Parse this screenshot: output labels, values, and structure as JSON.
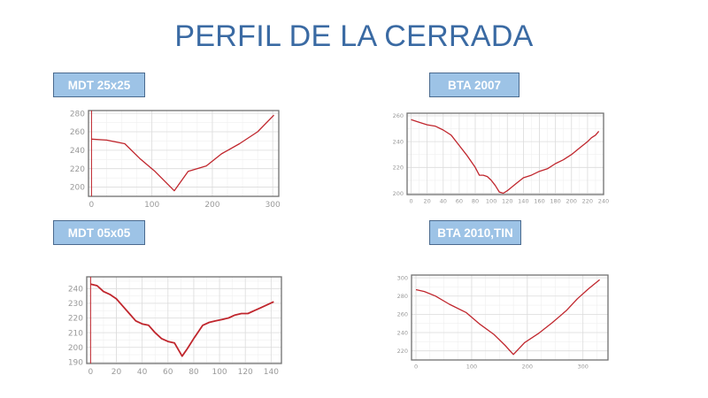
{
  "title": "PERFIL DE LA CERRADA",
  "colors": {
    "title": "#3a6aa3",
    "label_bg": "#9dc3e6",
    "label_border": "#4a6a8e",
    "line": "#c0262d",
    "grid": "#e6e6e6",
    "axis_frame": "#707070"
  },
  "labels": {
    "mdt25": "MDT 25x25",
    "bta2007": "BTA 2007",
    "mdt05": "MDT 05x05",
    "bta2010": "BTA 2010,TIN"
  },
  "chart_data": [
    {
      "id": "mdt25",
      "type": "line",
      "title": "MDT 25x25",
      "xlabel": "",
      "ylabel": "",
      "xlim": [
        -5,
        310
      ],
      "ylim": [
        190,
        283
      ],
      "xticks": [
        0,
        100,
        200,
        300
      ],
      "yticks": [
        200,
        220,
        240,
        260,
        280
      ],
      "grid": true,
      "vline_at_x0": true,
      "x": [
        0,
        25,
        55,
        80,
        105,
        137,
        160,
        190,
        215,
        245,
        275,
        302
      ],
      "y": [
        252,
        251,
        247,
        231,
        217,
        196,
        217,
        223,
        236,
        247,
        260,
        278
      ]
    },
    {
      "id": "bta2007",
      "type": "line",
      "title": "BTA 2007",
      "xlabel": "",
      "ylabel": "",
      "xlim": [
        -5,
        240
      ],
      "ylim": [
        199,
        262
      ],
      "xticks": [
        0,
        20,
        40,
        60,
        80,
        100,
        120,
        140,
        160,
        180,
        200,
        220,
        240
      ],
      "yticks": [
        200,
        220,
        240,
        260
      ],
      "grid": true,
      "x": [
        0,
        10,
        20,
        30,
        40,
        50,
        60,
        70,
        80,
        85,
        90,
        95,
        100,
        105,
        110,
        115,
        120,
        130,
        140,
        150,
        160,
        170,
        180,
        190,
        200,
        210,
        220,
        225,
        230,
        234
      ],
      "y": [
        257,
        255,
        253,
        252,
        249,
        245,
        237,
        229,
        220,
        214,
        214,
        213,
        210,
        206,
        201,
        200,
        202,
        207,
        212,
        214,
        217,
        219,
        223,
        226,
        230,
        235,
        240,
        243,
        245,
        248
      ]
    },
    {
      "id": "mdt05",
      "type": "line",
      "title": "MDT 05x05",
      "xlabel": "",
      "ylabel": "",
      "xlim": [
        -3,
        148
      ],
      "ylim": [
        189,
        248
      ],
      "xticks": [
        0,
        20,
        40,
        60,
        80,
        100,
        120,
        140
      ],
      "yticks": [
        190,
        200,
        210,
        220,
        230,
        240
      ],
      "grid": true,
      "vline_at_x0": true,
      "x": [
        0,
        5,
        10,
        15,
        20,
        25,
        30,
        35,
        40,
        45,
        50,
        55,
        60,
        65,
        71,
        75,
        80,
        87,
        92,
        97,
        102,
        107,
        112,
        117,
        122,
        127,
        132,
        137,
        142
      ],
      "y": [
        243,
        242,
        238,
        236,
        233,
        228,
        223,
        218,
        216,
        215,
        210,
        206,
        204,
        203,
        194,
        199,
        206,
        215,
        217,
        218,
        219,
        220,
        222,
        223,
        223,
        225,
        227,
        229,
        231
      ]
    },
    {
      "id": "bta2010",
      "type": "line",
      "title": "BTA 2010,TIN",
      "xlabel": "",
      "ylabel": "",
      "xlim": [
        -8,
        345
      ],
      "ylim": [
        210,
        303
      ],
      "xticks": [
        0,
        100,
        200,
        300
      ],
      "yticks": [
        220,
        240,
        260,
        280,
        300
      ],
      "grid": true,
      "x": [
        0,
        15,
        35,
        60,
        90,
        115,
        140,
        160,
        175,
        195,
        220,
        245,
        270,
        290,
        310,
        330
      ],
      "y": [
        287,
        285,
        280,
        271,
        262,
        249,
        238,
        226,
        216,
        229,
        239,
        251,
        264,
        277,
        288,
        298
      ]
    }
  ]
}
